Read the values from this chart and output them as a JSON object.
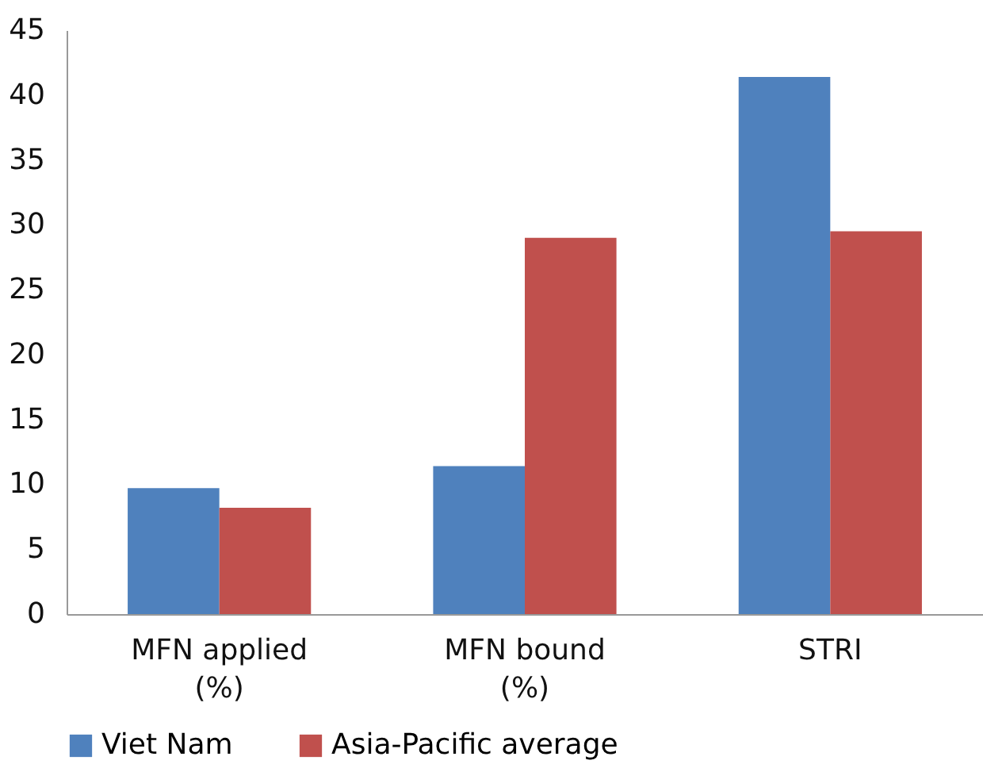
{
  "chart_data": {
    "type": "bar",
    "categories": [
      "MFN applied\n(%)",
      "MFN bound\n(%)",
      "STRI"
    ],
    "series": [
      {
        "name": "Viet Nam",
        "color": "#4f81bd",
        "values": [
          9.7,
          11.4,
          41.4
        ]
      },
      {
        "name": "Asia-Pacific average",
        "color": "#c0504d",
        "values": [
          8.2,
          29.0,
          29.5
        ]
      }
    ],
    "ylim": [
      0,
      45
    ],
    "yticks": [
      0,
      5,
      10,
      15,
      20,
      25,
      30,
      35,
      40,
      45
    ],
    "grid": false,
    "legend": "bottom"
  }
}
